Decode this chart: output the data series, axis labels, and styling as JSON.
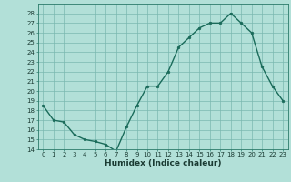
{
  "x": [
    0,
    1,
    2,
    3,
    4,
    5,
    6,
    7,
    8,
    9,
    10,
    11,
    12,
    13,
    14,
    15,
    16,
    17,
    18,
    19,
    20,
    21,
    22,
    23
  ],
  "y": [
    18.5,
    17.0,
    16.8,
    15.5,
    15.0,
    14.8,
    14.5,
    13.8,
    16.3,
    18.5,
    20.5,
    20.5,
    22.0,
    24.5,
    25.5,
    26.5,
    27.0,
    27.0,
    28.0,
    27.0,
    26.0,
    22.5,
    20.5,
    19.0
  ],
  "line_color": "#1a6b5a",
  "marker_color": "#1a6b5a",
  "bg_color": "#b2e0d8",
  "grid_color": "#7ab8b0",
  "xlabel": "Humidex (Indice chaleur)",
  "ylim": [
    14,
    29
  ],
  "xlim": [
    -0.5,
    23.5
  ],
  "yticks": [
    14,
    15,
    16,
    17,
    18,
    19,
    20,
    21,
    22,
    23,
    24,
    25,
    26,
    27,
    28
  ],
  "xticks": [
    0,
    1,
    2,
    3,
    4,
    5,
    6,
    7,
    8,
    9,
    10,
    11,
    12,
    13,
    14,
    15,
    16,
    17,
    18,
    19,
    20,
    21,
    22,
    23
  ],
  "tick_fontsize": 5.0,
  "label_fontsize": 6.5,
  "line_width": 1.0,
  "marker_size": 2.0
}
